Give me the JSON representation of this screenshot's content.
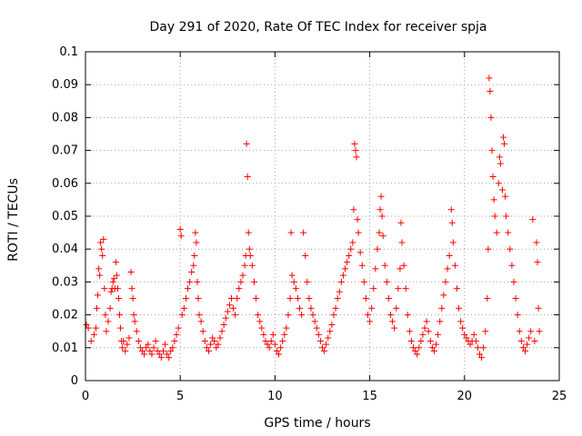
{
  "chart_data": {
    "type": "scatter",
    "title": "Day 291 of 2020, Rate Of TEC Index for receiver spja",
    "xlabel": "GPS time / hours",
    "ylabel": "ROTI / TECUs",
    "xlim": [
      0,
      25
    ],
    "ylim": [
      0,
      0.1
    ],
    "x_ticks": [
      0,
      5,
      10,
      15,
      20,
      25
    ],
    "x_tick_labels": [
      "0",
      "5",
      "10",
      "15",
      "20",
      "25"
    ],
    "y_ticks": [
      0,
      0.01,
      0.02,
      0.03,
      0.04,
      0.05,
      0.06,
      0.07,
      0.08,
      0.09,
      0.1
    ],
    "y_tick_labels": [
      "0",
      "0.01",
      "0.02",
      "0.03",
      "0.04",
      "0.05",
      "0.06",
      "0.07",
      "0.08",
      "0.09",
      "0.1"
    ],
    "grid": true,
    "marker": "+",
    "color": "#ff0000",
    "series": [
      {
        "values": [
          [
            0.05,
            0.017
          ],
          [
            0.15,
            0.016
          ],
          [
            0.3,
            0.012
          ],
          [
            0.45,
            0.014
          ],
          [
            0.55,
            0.016
          ],
          [
            0.6,
            0.022
          ],
          [
            0.65,
            0.026
          ],
          [
            0.7,
            0.034
          ],
          [
            0.75,
            0.032
          ],
          [
            0.8,
            0.042
          ],
          [
            0.85,
            0.04
          ],
          [
            0.9,
            0.038
          ],
          [
            0.95,
            0.043
          ],
          [
            1.0,
            0.028
          ],
          [
            1.05,
            0.02
          ],
          [
            1.1,
            0.015
          ],
          [
            1.2,
            0.018
          ],
          [
            1.3,
            0.022
          ],
          [
            1.35,
            0.027
          ],
          [
            1.4,
            0.028
          ],
          [
            1.45,
            0.03
          ],
          [
            1.5,
            0.031
          ],
          [
            1.55,
            0.028
          ],
          [
            1.6,
            0.036
          ],
          [
            1.65,
            0.032
          ],
          [
            1.7,
            0.028
          ],
          [
            1.75,
            0.025
          ],
          [
            1.8,
            0.02
          ],
          [
            1.85,
            0.016
          ],
          [
            1.9,
            0.012
          ],
          [
            1.95,
            0.01
          ],
          [
            2.0,
            0.012
          ],
          [
            2.1,
            0.009
          ],
          [
            2.2,
            0.011
          ],
          [
            2.3,
            0.013
          ],
          [
            2.4,
            0.033
          ],
          [
            2.45,
            0.028
          ],
          [
            2.5,
            0.025
          ],
          [
            2.55,
            0.02
          ],
          [
            2.6,
            0.018
          ],
          [
            2.7,
            0.015
          ],
          [
            2.8,
            0.012
          ],
          [
            2.9,
            0.01
          ],
          [
            3.0,
            0.009
          ],
          [
            3.1,
            0.008
          ],
          [
            3.2,
            0.01
          ],
          [
            3.3,
            0.011
          ],
          [
            3.4,
            0.009
          ],
          [
            3.5,
            0.008
          ],
          [
            3.6,
            0.01
          ],
          [
            3.7,
            0.012
          ],
          [
            3.8,
            0.009
          ],
          [
            3.9,
            0.008
          ],
          [
            4.0,
            0.007
          ],
          [
            4.1,
            0.009
          ],
          [
            4.2,
            0.011
          ],
          [
            4.3,
            0.008
          ],
          [
            4.4,
            0.007
          ],
          [
            4.5,
            0.009
          ],
          [
            4.6,
            0.01
          ],
          [
            4.7,
            0.012
          ],
          [
            4.8,
            0.014
          ],
          [
            4.9,
            0.016
          ],
          [
            5.0,
            0.046
          ],
          [
            5.05,
            0.044
          ],
          [
            5.1,
            0.02
          ],
          [
            5.2,
            0.022
          ],
          [
            5.3,
            0.025
          ],
          [
            5.4,
            0.028
          ],
          [
            5.5,
            0.03
          ],
          [
            5.6,
            0.033
          ],
          [
            5.7,
            0.035
          ],
          [
            5.75,
            0.038
          ],
          [
            5.8,
            0.045
          ],
          [
            5.85,
            0.042
          ],
          [
            5.9,
            0.03
          ],
          [
            5.95,
            0.025
          ],
          [
            6.0,
            0.02
          ],
          [
            6.1,
            0.018
          ],
          [
            6.2,
            0.015
          ],
          [
            6.3,
            0.012
          ],
          [
            6.4,
            0.01
          ],
          [
            6.5,
            0.009
          ],
          [
            6.6,
            0.011
          ],
          [
            6.7,
            0.013
          ],
          [
            6.8,
            0.012
          ],
          [
            6.9,
            0.01
          ],
          [
            7.0,
            0.011
          ],
          [
            7.1,
            0.013
          ],
          [
            7.2,
            0.015
          ],
          [
            7.3,
            0.017
          ],
          [
            7.4,
            0.019
          ],
          [
            7.5,
            0.021
          ],
          [
            7.6,
            0.023
          ],
          [
            7.7,
            0.025
          ],
          [
            7.8,
            0.022
          ],
          [
            7.9,
            0.02
          ],
          [
            8.0,
            0.025
          ],
          [
            8.1,
            0.028
          ],
          [
            8.2,
            0.03
          ],
          [
            8.3,
            0.032
          ],
          [
            8.4,
            0.035
          ],
          [
            8.45,
            0.038
          ],
          [
            8.5,
            0.072
          ],
          [
            8.55,
            0.062
          ],
          [
            8.6,
            0.045
          ],
          [
            8.65,
            0.04
          ],
          [
            8.7,
            0.038
          ],
          [
            8.8,
            0.035
          ],
          [
            8.9,
            0.03
          ],
          [
            9.0,
            0.025
          ],
          [
            9.1,
            0.02
          ],
          [
            9.2,
            0.018
          ],
          [
            9.3,
            0.016
          ],
          [
            9.4,
            0.014
          ],
          [
            9.5,
            0.012
          ],
          [
            9.6,
            0.011
          ],
          [
            9.7,
            0.01
          ],
          [
            9.8,
            0.012
          ],
          [
            9.9,
            0.014
          ],
          [
            10.0,
            0.011
          ],
          [
            10.1,
            0.009
          ],
          [
            10.2,
            0.008
          ],
          [
            10.3,
            0.01
          ],
          [
            10.4,
            0.012
          ],
          [
            10.5,
            0.014
          ],
          [
            10.6,
            0.016
          ],
          [
            10.7,
            0.02
          ],
          [
            10.8,
            0.025
          ],
          [
            10.85,
            0.045
          ],
          [
            10.9,
            0.032
          ],
          [
            11.0,
            0.03
          ],
          [
            11.1,
            0.028
          ],
          [
            11.2,
            0.025
          ],
          [
            11.3,
            0.022
          ],
          [
            11.4,
            0.02
          ],
          [
            11.5,
            0.045
          ],
          [
            11.6,
            0.038
          ],
          [
            11.7,
            0.03
          ],
          [
            11.8,
            0.025
          ],
          [
            11.9,
            0.022
          ],
          [
            12.0,
            0.02
          ],
          [
            12.1,
            0.018
          ],
          [
            12.2,
            0.016
          ],
          [
            12.3,
            0.014
          ],
          [
            12.4,
            0.012
          ],
          [
            12.5,
            0.01
          ],
          [
            12.6,
            0.009
          ],
          [
            12.7,
            0.011
          ],
          [
            12.8,
            0.013
          ],
          [
            12.9,
            0.015
          ],
          [
            13.0,
            0.017
          ],
          [
            13.1,
            0.02
          ],
          [
            13.2,
            0.022
          ],
          [
            13.3,
            0.025
          ],
          [
            13.4,
            0.027
          ],
          [
            13.5,
            0.03
          ],
          [
            13.6,
            0.032
          ],
          [
            13.7,
            0.034
          ],
          [
            13.8,
            0.036
          ],
          [
            13.9,
            0.038
          ],
          [
            14.0,
            0.04
          ],
          [
            14.1,
            0.042
          ],
          [
            14.15,
            0.052
          ],
          [
            14.2,
            0.072
          ],
          [
            14.25,
            0.07
          ],
          [
            14.3,
            0.068
          ],
          [
            14.35,
            0.049
          ],
          [
            14.4,
            0.045
          ],
          [
            14.5,
            0.039
          ],
          [
            14.6,
            0.035
          ],
          [
            14.7,
            0.03
          ],
          [
            14.8,
            0.025
          ],
          [
            14.9,
            0.02
          ],
          [
            15.0,
            0.018
          ],
          [
            15.1,
            0.022
          ],
          [
            15.2,
            0.028
          ],
          [
            15.3,
            0.034
          ],
          [
            15.4,
            0.04
          ],
          [
            15.5,
            0.045
          ],
          [
            15.55,
            0.052
          ],
          [
            15.6,
            0.056
          ],
          [
            15.65,
            0.05
          ],
          [
            15.7,
            0.044
          ],
          [
            15.8,
            0.035
          ],
          [
            15.9,
            0.03
          ],
          [
            16.0,
            0.025
          ],
          [
            16.1,
            0.02
          ],
          [
            16.2,
            0.018
          ],
          [
            16.3,
            0.016
          ],
          [
            16.4,
            0.022
          ],
          [
            16.5,
            0.028
          ],
          [
            16.6,
            0.034
          ],
          [
            16.65,
            0.048
          ],
          [
            16.7,
            0.042
          ],
          [
            16.8,
            0.035
          ],
          [
            16.9,
            0.028
          ],
          [
            17.0,
            0.02
          ],
          [
            17.1,
            0.015
          ],
          [
            17.2,
            0.012
          ],
          [
            17.3,
            0.01
          ],
          [
            17.4,
            0.009
          ],
          [
            17.5,
            0.008
          ],
          [
            17.6,
            0.01
          ],
          [
            17.7,
            0.012
          ],
          [
            17.8,
            0.014
          ],
          [
            17.9,
            0.016
          ],
          [
            18.0,
            0.018
          ],
          [
            18.1,
            0.015
          ],
          [
            18.2,
            0.012
          ],
          [
            18.3,
            0.01
          ],
          [
            18.4,
            0.009
          ],
          [
            18.5,
            0.011
          ],
          [
            18.6,
            0.014
          ],
          [
            18.7,
            0.018
          ],
          [
            18.8,
            0.022
          ],
          [
            18.9,
            0.026
          ],
          [
            19.0,
            0.03
          ],
          [
            19.1,
            0.034
          ],
          [
            19.2,
            0.038
          ],
          [
            19.3,
            0.052
          ],
          [
            19.35,
            0.048
          ],
          [
            19.4,
            0.042
          ],
          [
            19.5,
            0.035
          ],
          [
            19.6,
            0.028
          ],
          [
            19.7,
            0.022
          ],
          [
            19.8,
            0.018
          ],
          [
            19.9,
            0.016
          ],
          [
            20.0,
            0.014
          ],
          [
            20.1,
            0.013
          ],
          [
            20.2,
            0.012
          ],
          [
            20.3,
            0.011
          ],
          [
            20.4,
            0.012
          ],
          [
            20.5,
            0.014
          ],
          [
            20.6,
            0.012
          ],
          [
            20.7,
            0.01
          ],
          [
            20.8,
            0.008
          ],
          [
            20.9,
            0.007
          ],
          [
            21.0,
            0.01
          ],
          [
            21.1,
            0.015
          ],
          [
            21.2,
            0.025
          ],
          [
            21.25,
            0.04
          ],
          [
            21.3,
            0.092
          ],
          [
            21.35,
            0.088
          ],
          [
            21.4,
            0.08
          ],
          [
            21.45,
            0.07
          ],
          [
            21.5,
            0.062
          ],
          [
            21.55,
            0.055
          ],
          [
            21.6,
            0.05
          ],
          [
            21.7,
            0.045
          ],
          [
            21.8,
            0.06
          ],
          [
            21.85,
            0.068
          ],
          [
            21.9,
            0.066
          ],
          [
            22.0,
            0.058
          ],
          [
            22.05,
            0.074
          ],
          [
            22.1,
            0.072
          ],
          [
            22.15,
            0.056
          ],
          [
            22.2,
            0.05
          ],
          [
            22.3,
            0.045
          ],
          [
            22.4,
            0.04
          ],
          [
            22.5,
            0.035
          ],
          [
            22.6,
            0.03
          ],
          [
            22.7,
            0.025
          ],
          [
            22.8,
            0.02
          ],
          [
            22.9,
            0.015
          ],
          [
            23.0,
            0.012
          ],
          [
            23.1,
            0.01
          ],
          [
            23.2,
            0.009
          ],
          [
            23.3,
            0.011
          ],
          [
            23.4,
            0.013
          ],
          [
            23.5,
            0.015
          ],
          [
            23.6,
            0.049
          ],
          [
            23.7,
            0.012
          ],
          [
            23.8,
            0.042
          ],
          [
            23.85,
            0.036
          ],
          [
            23.9,
            0.022
          ],
          [
            23.95,
            0.015
          ]
        ]
      }
    ]
  }
}
